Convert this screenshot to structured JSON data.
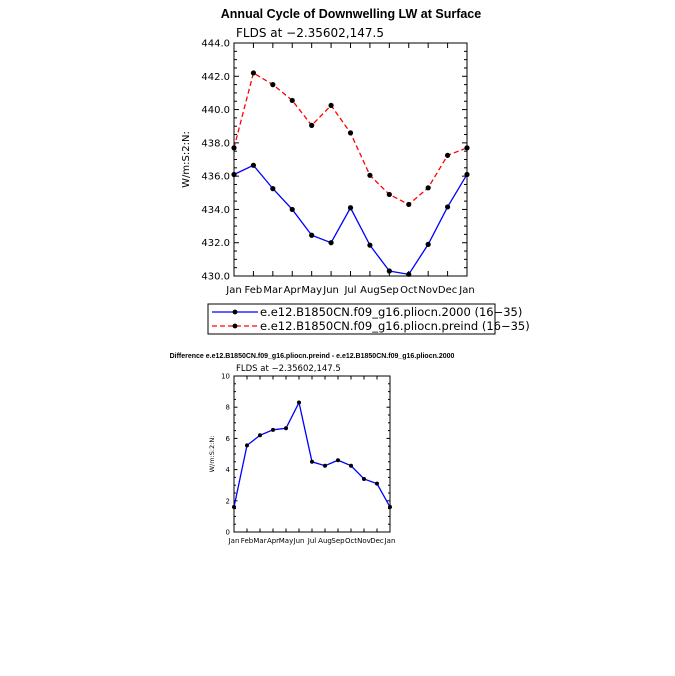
{
  "chart_data": [
    {
      "type": "line",
      "title": "Annual Cycle of Downwelling LW at Surface",
      "subtitle": "FLDS at −2.35602,147.5",
      "xlabel": "",
      "ylabel": "W/m:S:2:N:",
      "categories": [
        "Jan",
        "Feb",
        "Mar",
        "Apr",
        "May",
        "Jun",
        "Jul",
        "Aug",
        "Sep",
        "Oct",
        "Nov",
        "Dec",
        "Jan"
      ],
      "ylim": [
        430.0,
        444.0
      ],
      "yticks": [
        "430.0",
        "432.0",
        "434.0",
        "436.0",
        "438.0",
        "440.0",
        "442.0",
        "444.0"
      ],
      "legend_position": "bottom",
      "series": [
        {
          "name": "e.e12.B1850CN.f09_g16.pliocn.2000 (16−35)",
          "color": "#0000ff",
          "dash": "solid",
          "values": [
            436.1,
            436.65,
            435.25,
            434.0,
            432.45,
            432.0,
            434.1,
            431.85,
            430.3,
            430.1,
            431.9,
            434.15,
            436.1
          ]
        },
        {
          "name": "e.e12.B1850CN.f09_g16.pliocn.preind (16−35)",
          "color": "#ff0000",
          "dash": "dashed",
          "values": [
            437.7,
            442.2,
            441.5,
            440.55,
            439.05,
            440.25,
            438.6,
            436.05,
            434.9,
            434.3,
            435.3,
            437.25,
            437.7
          ]
        }
      ]
    },
    {
      "type": "line",
      "title": "Difference e.e12.B1850CN.f09_g16.pliocn.preind - e.e12.B1850CN.f09_g16.pliocn.2000",
      "subtitle": "FLDS at −2.35602,147.5",
      "xlabel": "",
      "ylabel": "W/m:S:2:N:",
      "categories": [
        "Jan",
        "Feb",
        "Mar",
        "Apr",
        "May",
        "Jun",
        "Jul",
        "Aug",
        "Sep",
        "Oct",
        "Nov",
        "Dec",
        "Jan"
      ],
      "ylim": [
        0,
        10
      ],
      "yticks": [
        "0",
        "2",
        "4",
        "6",
        "8",
        "10"
      ],
      "series": [
        {
          "name": "",
          "color": "#0000ff",
          "dash": "solid",
          "values": [
            1.6,
            5.55,
            6.2,
            6.55,
            6.65,
            8.3,
            4.5,
            4.25,
            4.6,
            4.25,
            3.4,
            3.1,
            1.6
          ]
        }
      ]
    }
  ]
}
